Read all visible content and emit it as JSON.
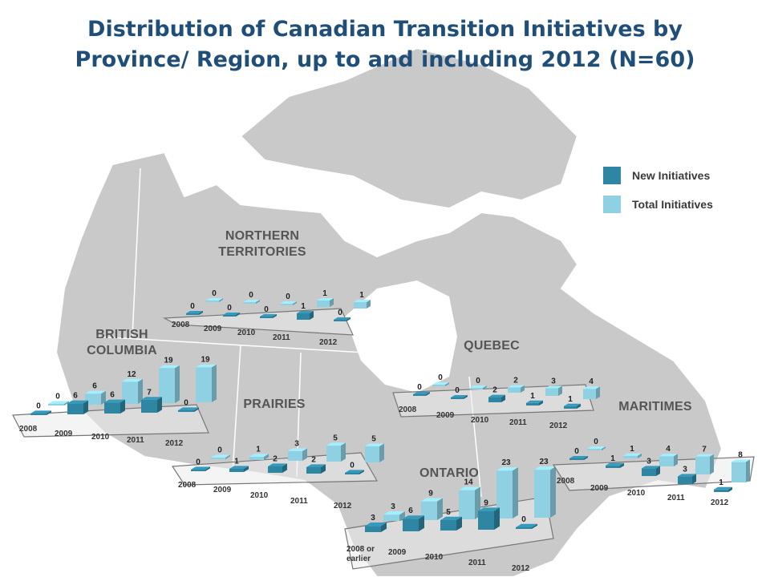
{
  "title_lines": [
    "Distribution of Canadian Transition Initiatives by",
    "Province/ Region, up to and including 2012 (N=60)"
  ],
  "legend": {
    "new_label": "New Initiatives",
    "total_label": "Total Initiatives"
  },
  "colors": {
    "new": "#2e86a3",
    "total": "#8fd0e3",
    "title": "#1f4e79",
    "land": "#c8c8c8",
    "water": "#ffffff"
  },
  "regions": {
    "northern_territories": {
      "label_lines": [
        "NORTHERN",
        "TERRITORIES"
      ]
    },
    "british_columbia": {
      "label_lines": [
        "BRITISH",
        "COLUMBIA"
      ]
    },
    "prairies": {
      "label_lines": [
        "PRAIRIES"
      ]
    },
    "quebec": {
      "label_lines": [
        "QUEBEC"
      ]
    },
    "ontario": {
      "label_lines": [
        "ONTARIO"
      ]
    },
    "maritimes": {
      "label_lines": [
        "MARITIMES"
      ]
    }
  },
  "chart_data": [
    {
      "type": "bar",
      "region": "NORTHERN TERRITORIES",
      "categories": [
        "2008",
        "2009",
        "2010",
        "2011",
        "2012"
      ],
      "series": [
        {
          "name": "New Initiatives",
          "values": [
            0,
            0,
            0,
            1,
            0
          ]
        },
        {
          "name": "Total Initiatives",
          "values": [
            0,
            0,
            0,
            1,
            1
          ]
        }
      ]
    },
    {
      "type": "bar",
      "region": "BRITISH COLUMBIA",
      "categories": [
        "2008",
        "2009",
        "2010",
        "2011",
        "2012"
      ],
      "series": [
        {
          "name": "New Initiatives",
          "values": [
            0,
            6,
            6,
            7,
            0
          ]
        },
        {
          "name": "Total Initiatives",
          "values": [
            0,
            6,
            12,
            19,
            19
          ]
        }
      ]
    },
    {
      "type": "bar",
      "region": "PRAIRIES",
      "categories": [
        "2008",
        "2009",
        "2010",
        "2011",
        "2012"
      ],
      "series": [
        {
          "name": "New Initiatives",
          "values": [
            0,
            1,
            2,
            2,
            0
          ]
        },
        {
          "name": "Total Initiatives",
          "values": [
            0,
            1,
            3,
            5,
            5
          ]
        }
      ]
    },
    {
      "type": "bar",
      "region": "QUEBEC",
      "categories": [
        "2008",
        "2009",
        "2010",
        "2011",
        "2012"
      ],
      "series": [
        {
          "name": "New Initiatives",
          "values": [
            0,
            0,
            2,
            1,
            1
          ]
        },
        {
          "name": "Total Initiatives",
          "values": [
            0,
            0,
            2,
            3,
            4
          ]
        }
      ]
    },
    {
      "type": "bar",
      "region": "ONTARIO",
      "categories": [
        "2008 or earlier",
        "2009",
        "2010",
        "2011",
        "2012"
      ],
      "series": [
        {
          "name": "New Initiatives",
          "values": [
            3,
            6,
            5,
            9,
            0
          ]
        },
        {
          "name": "Total Initiatives",
          "values": [
            3,
            9,
            14,
            23,
            23
          ]
        }
      ]
    },
    {
      "type": "bar",
      "region": "MARITIMES",
      "categories": [
        "2008",
        "2009",
        "2010",
        "2011",
        "2012"
      ],
      "series": [
        {
          "name": "New Initiatives",
          "values": [
            0,
            1,
            3,
            3,
            1
          ]
        },
        {
          "name": "Total Initiatives",
          "values": [
            0,
            1,
            4,
            7,
            8
          ]
        }
      ]
    }
  ]
}
